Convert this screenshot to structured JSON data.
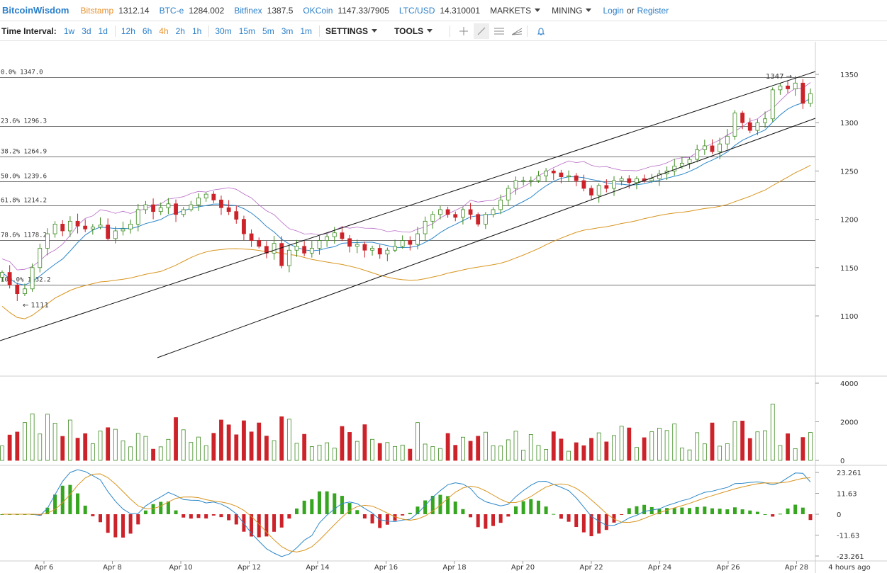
{
  "nav": {
    "brand": "BitcoinWisdom",
    "exchanges": [
      {
        "name": "Bitstamp",
        "price": "1312.14",
        "highlight": true
      },
      {
        "name": "BTC-e",
        "price": "1284.002",
        "highlight": false
      },
      {
        "name": "Bitfinex",
        "price": "1387.5",
        "highlight": false
      },
      {
        "name": "OKCoin",
        "price": "1147.33/7905",
        "highlight": false
      },
      {
        "name": "LTC/USD",
        "price": "14.310001",
        "highlight": false
      }
    ],
    "markets_label": "MARKETS",
    "mining_label": "MINING",
    "login_label": "Login",
    "or_label": "or",
    "register_label": "Register"
  },
  "toolbar": {
    "time_interval_label": "Time Interval:",
    "intervals": [
      "1w",
      "3d",
      "1d",
      "12h",
      "6h",
      "4h",
      "2h",
      "1h",
      "30m",
      "15m",
      "5m",
      "3m",
      "1m"
    ],
    "active_interval": "4h",
    "settings_label": "SETTINGS",
    "tools_label": "TOOLS",
    "tool_icons": [
      "crosshair-icon",
      "line-draw-icon",
      "horizontal-lines-icon",
      "fan-icon",
      "bell-icon"
    ]
  },
  "colors": {
    "up": "#3b8a1e",
    "down": "#cc2229",
    "ma_blue": "#2b86c8",
    "ma_orange": "#d8951f",
    "band_purple": "#b76bc8",
    "macd_up": "#36a520",
    "macd_down": "#cc2229"
  },
  "chart_data": {
    "type": "candlestick",
    "x_ticks": [
      "Apr 6",
      "Apr 8",
      "Apr 10",
      "Apr 12",
      "Apr 14",
      "Apr 16",
      "Apr 18",
      "Apr 20",
      "Apr 22",
      "Apr 24",
      "Apr 26",
      "Apr 28"
    ],
    "price_axis": {
      "ticks": [
        "1350",
        "1300",
        "1250",
        "1200",
        "1150",
        "1100"
      ]
    },
    "volume_axis": {
      "ticks": [
        "4000",
        "2000",
        "0"
      ]
    },
    "macd_axis": {
      "ticks": [
        "23.261",
        "11.63",
        "0",
        "-11.63",
        "-23.261"
      ]
    },
    "fib_levels": [
      {
        "label": "0.0% 1347.0",
        "value": 1347.0
      },
      {
        "label": "23.6% 1296.3",
        "value": 1296.3
      },
      {
        "label": "38.2% 1264.9",
        "value": 1264.9
      },
      {
        "label": "50.0% 1239.6",
        "value": 1239.6
      },
      {
        "label": "61.8% 1214.2",
        "value": 1214.2
      },
      {
        "label": "78.6% 1178.2",
        "value": 1178.2
      },
      {
        "label": "100.0% 1132.2",
        "value": 1132.2
      }
    ],
    "annotations": {
      "high": "1347 →",
      "low": "← 1111"
    },
    "status": "4 hours ago",
    "candles_close": [
      1145,
      1132,
      1123,
      1128,
      1150,
      1170,
      1185,
      1195,
      1188,
      1198,
      1193,
      1190,
      1192,
      1194,
      1180,
      1188,
      1190,
      1195,
      1210,
      1215,
      1208,
      1212,
      1216,
      1205,
      1210,
      1215,
      1222,
      1226,
      1220,
      1212,
      1208,
      1200,
      1185,
      1178,
      1172,
      1165,
      1175,
      1152,
      1168,
      1172,
      1165,
      1170,
      1178,
      1182,
      1186,
      1180,
      1172,
      1174,
      1168,
      1170,
      1164,
      1168,
      1172,
      1178,
      1174,
      1185,
      1198,
      1205,
      1210,
      1205,
      1202,
      1210,
      1205,
      1195,
      1205,
      1210,
      1220,
      1232,
      1240,
      1240,
      1240,
      1245,
      1250,
      1248,
      1244,
      1245,
      1240,
      1232,
      1225,
      1235,
      1232,
      1240,
      1242,
      1238,
      1242,
      1240,
      1242,
      1247,
      1250,
      1255,
      1258,
      1262,
      1272,
      1276,
      1270,
      1278,
      1286,
      1310,
      1300,
      1292,
      1300,
      1304,
      1334,
      1338,
      1335,
      1341,
      1320,
      1330
    ]
  }
}
